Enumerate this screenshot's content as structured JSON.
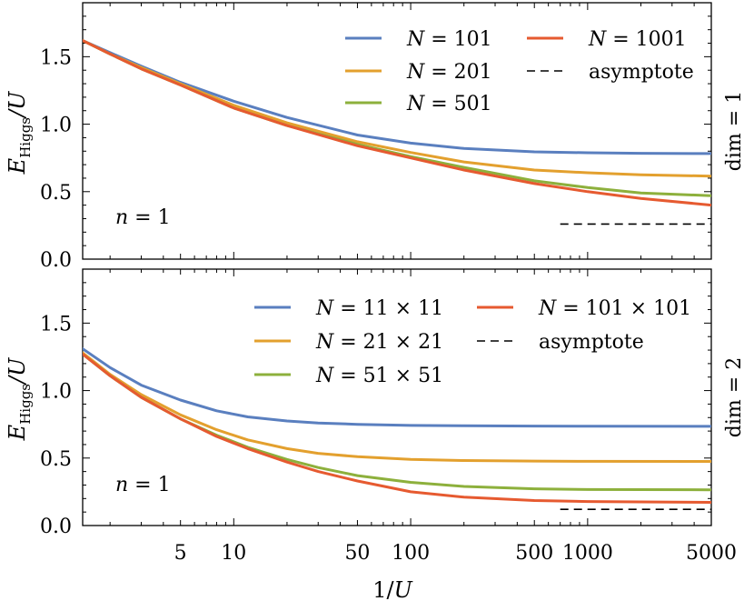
{
  "chart_data": [
    {
      "type": "line",
      "panel_label": "dim = 1",
      "annotation": {
        "prefix": "n",
        "text": " = 1"
      },
      "ylabel": {
        "main": "E",
        "sub": "Higgs",
        "rest": "/U"
      },
      "xscale": "log",
      "xlim": [
        1.4,
        5000
      ],
      "ylim": [
        0.0,
        1.9
      ],
      "yticks": [
        "0.0",
        "0.5",
        "1.0",
        "1.5"
      ],
      "legend": {
        "placement": "top-right",
        "columns": 2
      },
      "series": [
        {
          "name_prefix": "N",
          "name": " = 101",
          "color": "#5a7fbf",
          "dash": "",
          "x": [
            1.4,
            2,
            3,
            5,
            10,
            20,
            50,
            100,
            200,
            500,
            1000,
            2000,
            5000
          ],
          "y": [
            1.62,
            1.53,
            1.43,
            1.31,
            1.17,
            1.05,
            0.92,
            0.86,
            0.82,
            0.795,
            0.788,
            0.784,
            0.782
          ]
        },
        {
          "name_prefix": "N",
          "name": " = 201",
          "color": "#e3a02e",
          "dash": "",
          "x": [
            1.4,
            2,
            3,
            5,
            10,
            20,
            50,
            100,
            200,
            500,
            1000,
            2000,
            5000
          ],
          "y": [
            1.62,
            1.52,
            1.42,
            1.3,
            1.14,
            1.01,
            0.87,
            0.79,
            0.72,
            0.66,
            0.64,
            0.625,
            0.615
          ]
        },
        {
          "name_prefix": "N",
          "name": " = 501",
          "color": "#8db03c",
          "dash": "",
          "x": [
            1.4,
            2,
            3,
            5,
            10,
            20,
            50,
            100,
            200,
            500,
            1000,
            2000,
            5000
          ],
          "y": [
            1.62,
            1.52,
            1.41,
            1.29,
            1.12,
            0.99,
            0.85,
            0.76,
            0.68,
            0.58,
            0.53,
            0.49,
            0.47
          ]
        },
        {
          "name_prefix": "N",
          "name": " = 1001",
          "color": "#e65a30",
          "dash": "",
          "x": [
            1.4,
            2,
            3,
            5,
            10,
            20,
            50,
            100,
            200,
            500,
            1000,
            2000,
            5000
          ],
          "y": [
            1.62,
            1.52,
            1.41,
            1.29,
            1.12,
            0.99,
            0.84,
            0.75,
            0.66,
            0.56,
            0.5,
            0.45,
            0.4
          ]
        },
        {
          "name": "asymptote",
          "color": "#000000",
          "dash": "9,6",
          "x": [
            700,
            5000
          ],
          "y": [
            0.26,
            0.26
          ]
        }
      ]
    },
    {
      "type": "line",
      "panel_label": "dim = 2",
      "annotation": {
        "prefix": "n",
        "text": " = 1"
      },
      "ylabel": {
        "main": "E",
        "sub": "Higgs",
        "rest": "/U"
      },
      "xlabel": {
        "main": "1/",
        "ital": "U"
      },
      "xscale": "log",
      "xlim": [
        1.4,
        5000
      ],
      "ylim": [
        0.0,
        1.9
      ],
      "xticks": [
        5,
        10,
        50,
        100,
        500,
        1000,
        5000
      ],
      "xtick_labels": [
        "5",
        "10",
        "50",
        "100",
        "500",
        "1000",
        "5000"
      ],
      "yticks": [
        "0.0",
        "0.5",
        "1.0",
        "1.5"
      ],
      "legend": {
        "placement": "top-right",
        "columns": 2
      },
      "series": [
        {
          "name_prefix": "N",
          "name": " = 11 × 11",
          "color": "#5a7fbf",
          "dash": "",
          "x": [
            1.4,
            2,
            3,
            5,
            8,
            12,
            20,
            30,
            50,
            100,
            200,
            500,
            1000,
            5000
          ],
          "y": [
            1.31,
            1.17,
            1.04,
            0.93,
            0.85,
            0.805,
            0.775,
            0.76,
            0.75,
            0.742,
            0.739,
            0.737,
            0.736,
            0.735
          ]
        },
        {
          "name_prefix": "N",
          "name": " = 21 × 21",
          "color": "#e3a02e",
          "dash": "",
          "x": [
            1.4,
            2,
            3,
            5,
            8,
            12,
            20,
            30,
            50,
            100,
            200,
            500,
            1000,
            5000
          ],
          "y": [
            1.28,
            1.12,
            0.97,
            0.82,
            0.71,
            0.635,
            0.57,
            0.535,
            0.51,
            0.49,
            0.482,
            0.478,
            0.476,
            0.475
          ]
        },
        {
          "name_prefix": "N",
          "name": " = 51 × 51",
          "color": "#8db03c",
          "dash": "",
          "x": [
            1.4,
            2,
            3,
            5,
            8,
            12,
            20,
            30,
            50,
            100,
            200,
            500,
            1000,
            5000
          ],
          "y": [
            1.27,
            1.11,
            0.95,
            0.79,
            0.67,
            0.58,
            0.49,
            0.43,
            0.37,
            0.32,
            0.29,
            0.272,
            0.267,
            0.265
          ]
        },
        {
          "name_prefix": "N",
          "name": " = 101 × 101",
          "color": "#e65a30",
          "dash": "",
          "x": [
            1.4,
            2,
            3,
            5,
            8,
            12,
            20,
            30,
            50,
            100,
            200,
            500,
            1000,
            5000
          ],
          "y": [
            1.27,
            1.11,
            0.95,
            0.79,
            0.66,
            0.57,
            0.47,
            0.4,
            0.33,
            0.25,
            0.21,
            0.185,
            0.178,
            0.172
          ]
        },
        {
          "name": "asymptote",
          "color": "#000000",
          "dash": "9,6",
          "x": [
            700,
            5000
          ],
          "y": [
            0.12,
            0.12
          ]
        }
      ]
    }
  ]
}
